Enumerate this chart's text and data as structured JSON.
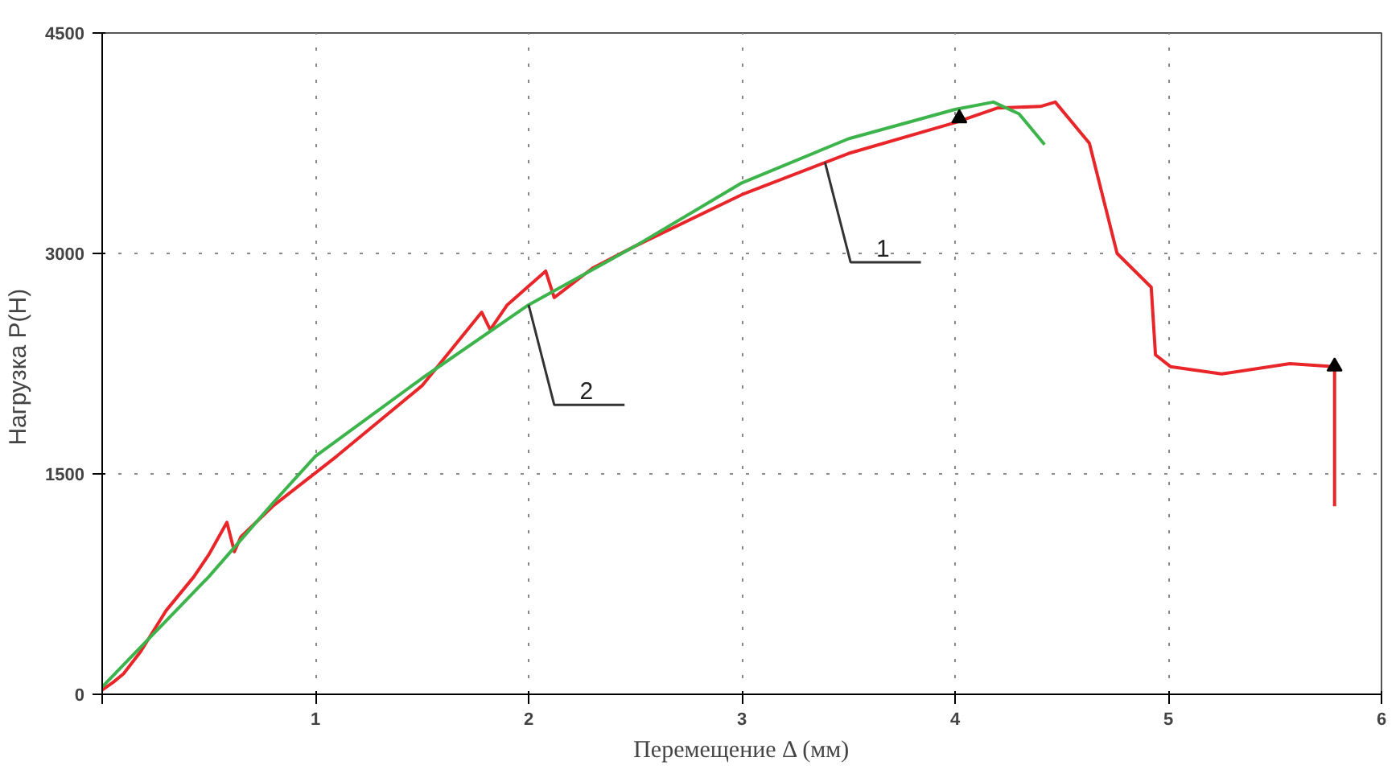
{
  "chart_data": {
    "type": "line",
    "xlabel": "Перемещение Δ (мм)",
    "ylabel": "Нагрузка  P(Н)",
    "xlim": [
      0,
      6
    ],
    "ylim": [
      0,
      4500
    ],
    "xticks": [
      {
        "value": 0,
        "label": null
      },
      1,
      2,
      3,
      4,
      5,
      6
    ],
    "yticks": [
      0,
      1500,
      3000,
      4500
    ],
    "grid": true,
    "line_style": "solid",
    "marker": "none",
    "series": [
      {
        "color": "#e8262a",
        "x": [
          0,
          0.05,
          0.1,
          0.18,
          0.3,
          0.43,
          0.5,
          0.585,
          0.62,
          0.65,
          0.8,
          1.1,
          1.5,
          1.78,
          1.82,
          1.9,
          2.08,
          2.12,
          2.3,
          2.5,
          3.0,
          3.5,
          4.0,
          4.2,
          4.4,
          4.47,
          4.63,
          4.76,
          4.92,
          4.94,
          5.01,
          5.25,
          5.57,
          5.78,
          5.78
        ],
        "values": [
          30,
          80,
          140,
          290,
          570,
          800,
          950,
          1170,
          970,
          1070,
          1280,
          1620,
          2100,
          2600,
          2480,
          2650,
          2880,
          2700,
          2900,
          3050,
          3400,
          3680,
          3890,
          3990,
          4000,
          4030,
          3750,
          3000,
          2770,
          2310,
          2230,
          2180,
          2250,
          2230,
          1280
        ]
      },
      {
        "color": "#3cb44b",
        "x": [
          0,
          0.1,
          0.3,
          0.5,
          0.62,
          0.8,
          1.0,
          1.5,
          2.0,
          2.5,
          3.0,
          3.5,
          4.0,
          4.18,
          4.3,
          4.42
        ],
        "values": [
          50,
          200,
          500,
          800,
          1000,
          1300,
          1620,
          2150,
          2650,
          3050,
          3480,
          3780,
          3980,
          4030,
          3950,
          3740
        ]
      },
      {
        "type": "scatter",
        "marker": "triangle",
        "color": "#000000",
        "x": [
          4.02,
          5.78
        ],
        "values": [
          3920,
          2230
        ]
      }
    ],
    "annotations": [
      {
        "text": "1",
        "x": 3.39,
        "y": 3620
      },
      {
        "text": "2",
        "x": 2.0,
        "y": 2650
      }
    ]
  }
}
